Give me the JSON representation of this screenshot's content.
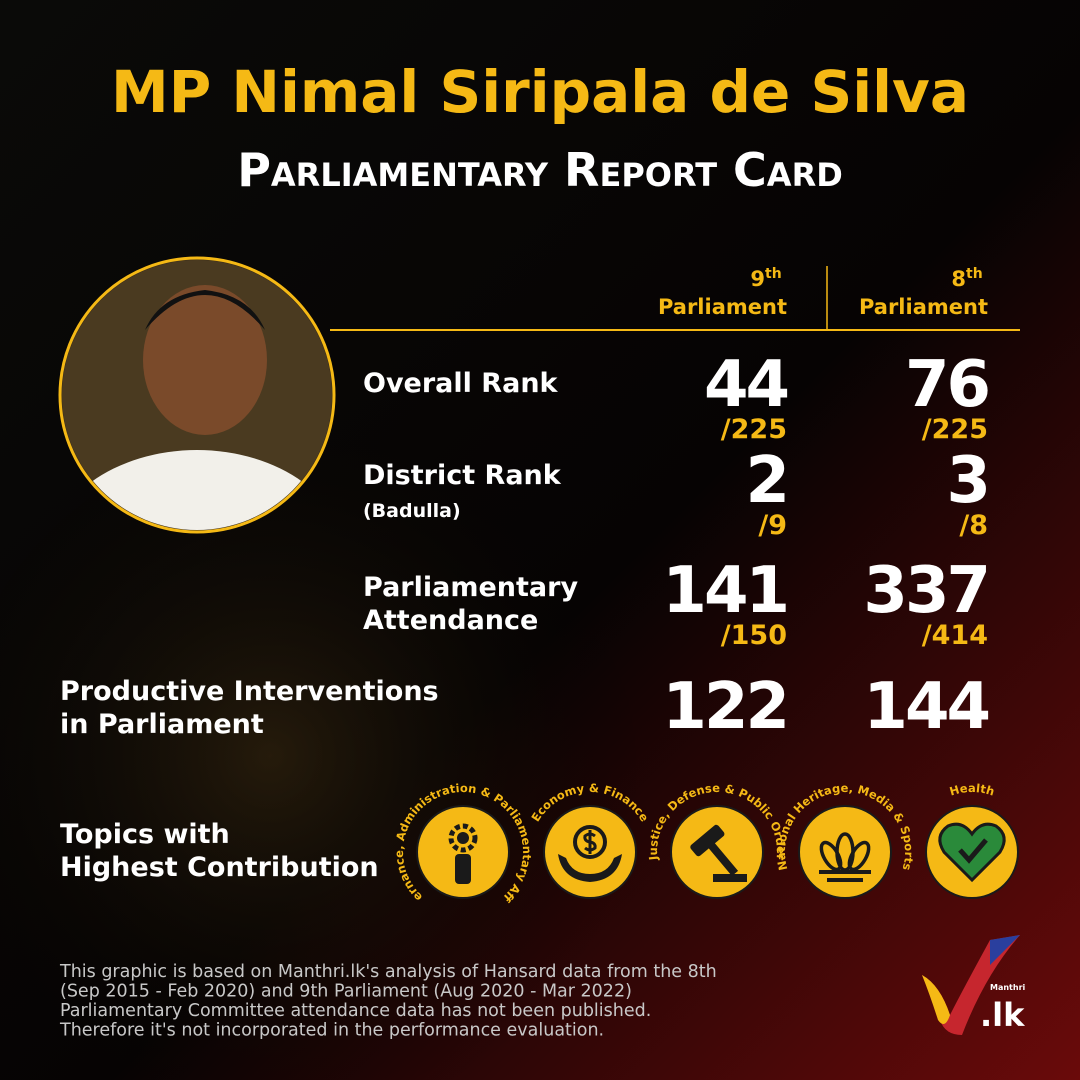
{
  "header": {
    "name": "MP Nimal Siripala de Silva",
    "subtitle": "Parliamentary Report Card"
  },
  "columns": [
    {
      "number": "9",
      "suffix": "th",
      "label": "Parliament"
    },
    {
      "number": "8",
      "suffix": "th",
      "label": "Parliament"
    }
  ],
  "rows": [
    {
      "label_lines": [
        "Overall Rank"
      ],
      "values": [
        {
          "main": "44",
          "denominator": "/225"
        },
        {
          "main": "76",
          "denominator": "/225"
        }
      ]
    },
    {
      "label_lines": [
        "District Rank"
      ],
      "sublabel": "(Badulla)",
      "values": [
        {
          "main": "2",
          "denominator": "/9"
        },
        {
          "main": "3",
          "denominator": "/8"
        }
      ]
    },
    {
      "label_lines": [
        "Parliamentary",
        "Attendance"
      ],
      "values": [
        {
          "main": "141",
          "denominator": "/150"
        },
        {
          "main": "337",
          "denominator": "/414"
        }
      ]
    }
  ],
  "interventions": {
    "label_lines": [
      "Productive Interventions",
      "in Parliament"
    ],
    "values": [
      "122",
      "144"
    ]
  },
  "topics": {
    "label_lines": [
      "Topics with",
      "Highest Contribution"
    ],
    "items": [
      "Governance, Administration & Parliamentary Affairs",
      "Economy & Finance",
      "Justice, Defense & Public Order",
      "National Heritage, Media & Sports",
      "Health"
    ]
  },
  "footnote": [
    "This graphic is based on Manthri.lk's analysis of Hansard data from the 8th",
    "(Sep 2015 - Feb 2020) and 9th Parliament (Aug 2020 - Mar 2022)",
    "Parliamentary Committee attendance data has not been published.",
    "Therefore it's not incorporated in the performance evaluation."
  ],
  "logo": {
    "small": "Manthri",
    "big": ".lk"
  }
}
